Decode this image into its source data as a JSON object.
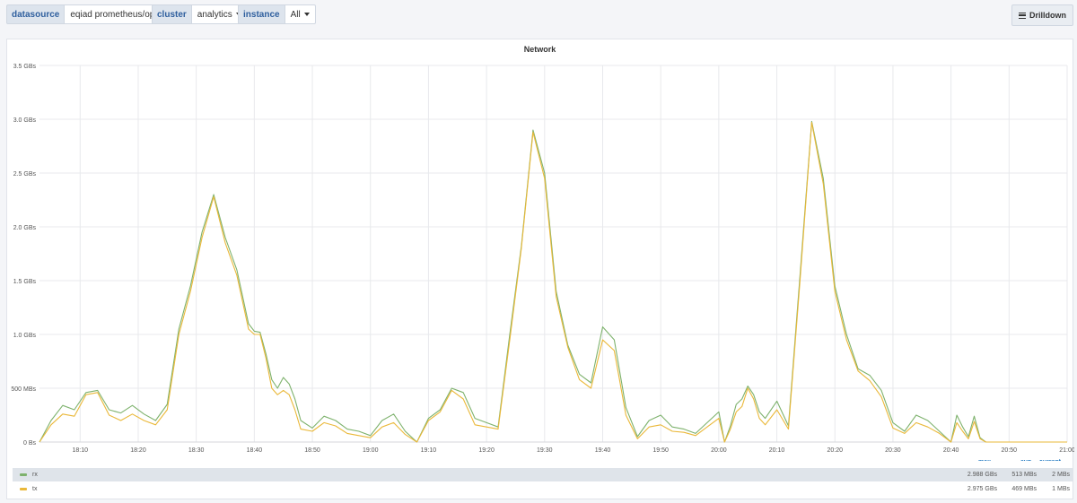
{
  "variables": [
    {
      "label": "datasource",
      "value": "eqiad prometheus/ops"
    },
    {
      "label": "cluster",
      "value": "analytics"
    },
    {
      "label": "instance",
      "value": "All"
    }
  ],
  "drilldown_label": "Drilldown",
  "panel": {
    "title": "Network",
    "legend_headers": {
      "max": "max",
      "avg": "avg",
      "current": "current"
    },
    "legend": [
      {
        "name": "rx",
        "color": "#7eb26d",
        "max": "2.988 GBs",
        "avg": "513 MBs",
        "current": "2 MBs"
      },
      {
        "name": "tx",
        "color": "#eab839",
        "max": "2.975 GBs",
        "avg": "469 MBs",
        "current": "1 MBs"
      }
    ]
  },
  "chart_data": {
    "type": "line",
    "title": "Network",
    "y_ticks": [
      "0 Bs",
      "500 MBs",
      "1.0 GBs",
      "1.5 GBs",
      "2.0 GBs",
      "2.5 GBs",
      "3.0 GBs",
      "3.5 GBs"
    ],
    "ylim": [
      0,
      3.5
    ],
    "y_unit": "GBs",
    "x_ticks": [
      "18:10",
      "18:20",
      "18:30",
      "18:40",
      "18:50",
      "19:00",
      "19:10",
      "19:20",
      "19:30",
      "19:40",
      "19:50",
      "20:00",
      "20:10",
      "20:20",
      "20:30",
      "20:40",
      "20:50",
      "21:00"
    ],
    "xlim_minutes": [
      1083,
      1260
    ],
    "grid": true,
    "series": [
      {
        "name": "rx",
        "color": "#7eb26d",
        "x": [
          1083,
          1085,
          1087,
          1089,
          1091,
          1093,
          1095,
          1097,
          1099,
          1101,
          1103,
          1105,
          1107,
          1109,
          1111,
          1113,
          1115,
          1117,
          1119,
          1120,
          1121,
          1122,
          1123,
          1124,
          1125,
          1126,
          1127,
          1128,
          1130,
          1132,
          1134,
          1136,
          1138,
          1140,
          1142,
          1144,
          1146,
          1148,
          1150,
          1152,
          1154,
          1156,
          1158,
          1160,
          1162,
          1164,
          1166,
          1168,
          1170,
          1172,
          1174,
          1176,
          1178,
          1180,
          1182,
          1184,
          1186,
          1188,
          1190,
          1192,
          1194,
          1196,
          1198,
          1200,
          1201,
          1202,
          1203,
          1204,
          1205,
          1206,
          1207,
          1208,
          1210,
          1212,
          1214,
          1216,
          1218,
          1220,
          1222,
          1224,
          1226,
          1228,
          1230,
          1232,
          1234,
          1236,
          1238,
          1240,
          1241,
          1242,
          1243,
          1244,
          1245,
          1246,
          1247,
          1248,
          1250,
          1252,
          1254,
          1256,
          1258,
          1260
        ],
        "y": [
          0.0,
          0.2,
          0.34,
          0.3,
          0.46,
          0.48,
          0.3,
          0.27,
          0.34,
          0.26,
          0.2,
          0.35,
          1.05,
          1.45,
          1.95,
          2.3,
          1.9,
          1.6,
          1.1,
          1.03,
          1.02,
          0.82,
          0.58,
          0.5,
          0.6,
          0.54,
          0.4,
          0.2,
          0.13,
          0.24,
          0.2,
          0.12,
          0.1,
          0.06,
          0.2,
          0.26,
          0.1,
          0.0,
          0.22,
          0.3,
          0.5,
          0.46,
          0.22,
          0.18,
          0.14,
          1.0,
          1.82,
          2.9,
          2.5,
          1.4,
          0.9,
          0.63,
          0.55,
          1.07,
          0.95,
          0.32,
          0.05,
          0.2,
          0.25,
          0.14,
          0.12,
          0.08,
          0.18,
          0.28,
          0.0,
          0.15,
          0.35,
          0.4,
          0.52,
          0.44,
          0.28,
          0.22,
          0.38,
          0.15,
          1.55,
          2.98,
          2.45,
          1.45,
          1.0,
          0.68,
          0.62,
          0.48,
          0.18,
          0.1,
          0.25,
          0.2,
          0.1,
          0.0,
          0.25,
          0.14,
          0.05,
          0.24,
          0.04,
          0.0,
          0.0,
          0.0,
          0.0,
          0.0,
          0.0,
          0.0,
          0.0,
          0.0
        ]
      },
      {
        "name": "tx",
        "color": "#eab839",
        "x": [
          1083,
          1085,
          1087,
          1089,
          1091,
          1093,
          1095,
          1097,
          1099,
          1101,
          1103,
          1105,
          1107,
          1109,
          1111,
          1113,
          1115,
          1117,
          1119,
          1120,
          1121,
          1122,
          1123,
          1124,
          1125,
          1126,
          1127,
          1128,
          1130,
          1132,
          1134,
          1136,
          1138,
          1140,
          1142,
          1144,
          1146,
          1148,
          1150,
          1152,
          1154,
          1156,
          1158,
          1160,
          1162,
          1164,
          1166,
          1168,
          1170,
          1172,
          1174,
          1176,
          1178,
          1180,
          1182,
          1184,
          1186,
          1188,
          1190,
          1192,
          1194,
          1196,
          1198,
          1200,
          1201,
          1202,
          1203,
          1204,
          1205,
          1206,
          1207,
          1208,
          1210,
          1212,
          1214,
          1216,
          1218,
          1220,
          1222,
          1224,
          1226,
          1228,
          1230,
          1232,
          1234,
          1236,
          1238,
          1240,
          1241,
          1242,
          1243,
          1244,
          1245,
          1246,
          1247,
          1248,
          1250,
          1252,
          1254,
          1256,
          1258,
          1260
        ],
        "y": [
          0.0,
          0.16,
          0.26,
          0.24,
          0.44,
          0.46,
          0.25,
          0.2,
          0.26,
          0.2,
          0.16,
          0.3,
          1.0,
          1.4,
          1.9,
          2.28,
          1.85,
          1.55,
          1.05,
          1.0,
          1.0,
          0.78,
          0.5,
          0.44,
          0.48,
          0.44,
          0.3,
          0.12,
          0.1,
          0.18,
          0.15,
          0.08,
          0.06,
          0.04,
          0.14,
          0.18,
          0.07,
          0.0,
          0.2,
          0.28,
          0.48,
          0.4,
          0.16,
          0.14,
          0.12,
          0.95,
          1.8,
          2.88,
          2.45,
          1.35,
          0.88,
          0.58,
          0.5,
          0.95,
          0.85,
          0.25,
          0.03,
          0.14,
          0.16,
          0.1,
          0.09,
          0.06,
          0.14,
          0.22,
          0.0,
          0.12,
          0.28,
          0.33,
          0.5,
          0.4,
          0.22,
          0.16,
          0.3,
          0.12,
          1.5,
          2.97,
          2.4,
          1.4,
          0.95,
          0.66,
          0.57,
          0.42,
          0.13,
          0.08,
          0.18,
          0.14,
          0.08,
          0.0,
          0.18,
          0.1,
          0.03,
          0.19,
          0.03,
          0.0,
          0.0,
          0.0,
          0.0,
          0.0,
          0.0,
          0.0,
          0.0,
          0.0
        ]
      }
    ]
  }
}
